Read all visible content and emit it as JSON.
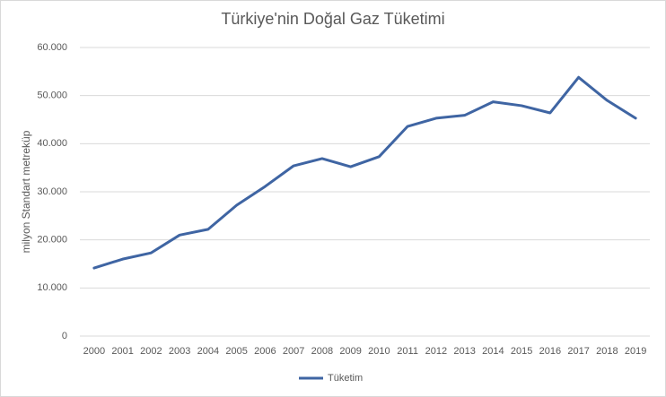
{
  "chart_data": {
    "type": "line",
    "title": "Türkiye'nin Doğal Gaz Tüketimi",
    "y_label": "milyon Standart metreküp",
    "categories": [
      "2000",
      "2001",
      "2002",
      "2003",
      "2004",
      "2005",
      "2006",
      "2007",
      "2008",
      "2009",
      "2010",
      "2011",
      "2012",
      "2013",
      "2014",
      "2015",
      "2016",
      "2017",
      "2018",
      "2019"
    ],
    "series": [
      {
        "name": "Tüketim",
        "color": "#3f65a3",
        "values": [
          14150,
          16000,
          17300,
          21000,
          22200,
          27200,
          31100,
          35400,
          36900,
          35200,
          37300,
          43600,
          45300,
          45900,
          48700,
          47900,
          46400,
          53800,
          49000,
          45300
        ]
      }
    ],
    "ylim": [
      0,
      60000
    ],
    "yticks": [
      0,
      {
        "value": 10000,
        "label": "10.000"
      },
      {
        "value": 20000,
        "label": "20.000"
      },
      {
        "value": 30000,
        "label": "30.000"
      },
      {
        "value": 40000,
        "label": "40.000"
      },
      {
        "value": 50000,
        "label": "50.000"
      },
      {
        "value": 60000,
        "label": "60.000"
      }
    ],
    "grid": true,
    "legend": "bottom"
  }
}
